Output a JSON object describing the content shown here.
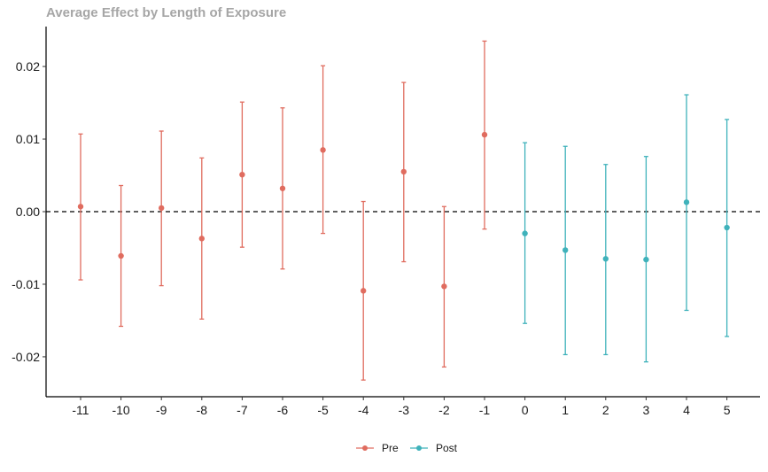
{
  "chart_data": {
    "type": "scatter",
    "title": "Average Effect by Length of Exposure",
    "xlabel": "",
    "ylabel": "",
    "x_categories": [
      "-11",
      "-10",
      "-9",
      "-8",
      "-7",
      "-6",
      "-5",
      "-4",
      "-3",
      "-2",
      "-1",
      "0",
      "1",
      "2",
      "3",
      "4",
      "5"
    ],
    "ylim": [
      -0.0255,
      0.0255
    ],
    "yticks": [
      -0.02,
      -0.01,
      0.0,
      0.01,
      0.02
    ],
    "ytick_labels": [
      "-0.02",
      "-0.01",
      "0.00",
      "0.01",
      "0.02"
    ],
    "reference_line": {
      "y": 0,
      "style": "dashed",
      "color": "#000000"
    },
    "grid": false,
    "legend": {
      "position": "bottom",
      "entries": [
        "Pre",
        "Post"
      ]
    },
    "series": [
      {
        "name": "Pre",
        "color": "#E06C5F",
        "points": [
          {
            "x": "-11",
            "y": 0.0007,
            "lo": -0.0094,
            "hi": 0.0107
          },
          {
            "x": "-10",
            "y": -0.0061,
            "lo": -0.0158,
            "hi": 0.0036
          },
          {
            "x": "-9",
            "y": 0.0005,
            "lo": -0.0102,
            "hi": 0.0111
          },
          {
            "x": "-8",
            "y": -0.0037,
            "lo": -0.0148,
            "hi": 0.0074
          },
          {
            "x": "-7",
            "y": 0.0051,
            "lo": -0.0049,
            "hi": 0.0151
          },
          {
            "x": "-6",
            "y": 0.0032,
            "lo": -0.0079,
            "hi": 0.0143
          },
          {
            "x": "-5",
            "y": 0.0085,
            "lo": -0.003,
            "hi": 0.0201
          },
          {
            "x": "-4",
            "y": -0.0109,
            "lo": -0.0232,
            "hi": 0.0014
          },
          {
            "x": "-3",
            "y": 0.0055,
            "lo": -0.0069,
            "hi": 0.0178
          },
          {
            "x": "-2",
            "y": -0.0103,
            "lo": -0.0214,
            "hi": 0.0007
          },
          {
            "x": "-1",
            "y": 0.0106,
            "lo": -0.0024,
            "hi": 0.0235
          }
        ]
      },
      {
        "name": "Post",
        "color": "#3FB2BB",
        "points": [
          {
            "x": "0",
            "y": -0.003,
            "lo": -0.0154,
            "hi": 0.0095
          },
          {
            "x": "1",
            "y": -0.0053,
            "lo": -0.0197,
            "hi": 0.009
          },
          {
            "x": "2",
            "y": -0.0065,
            "lo": -0.0197,
            "hi": 0.0065
          },
          {
            "x": "3",
            "y": -0.0066,
            "lo": -0.0207,
            "hi": 0.0076
          },
          {
            "x": "4",
            "y": 0.0013,
            "lo": -0.0136,
            "hi": 0.0161
          },
          {
            "x": "5",
            "y": -0.0022,
            "lo": -0.0172,
            "hi": 0.0127
          }
        ]
      }
    ]
  }
}
